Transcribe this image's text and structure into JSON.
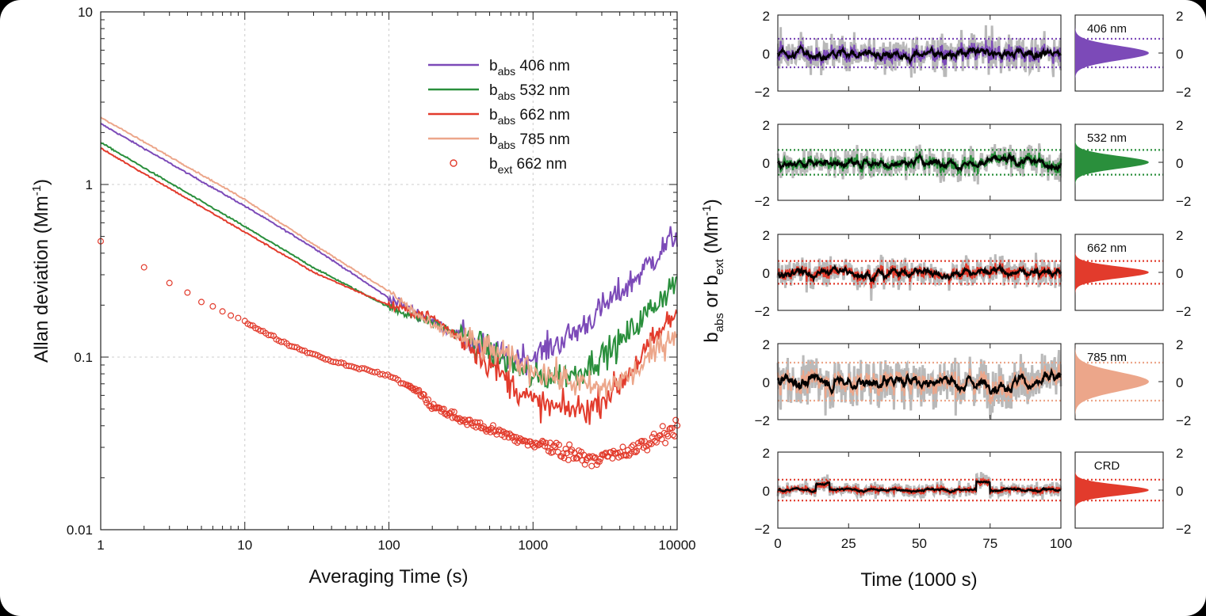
{
  "chart_data": [
    {
      "type": "line",
      "x_scale": "log",
      "y_scale": "log",
      "xlabel": "Averaging Time (s)",
      "ylabel_main": "Allan deviation (Mm",
      "ylabel_sup": "-1",
      "ylabel_close": ")",
      "xlim": [
        1,
        10000
      ],
      "ylim": [
        0.01,
        10
      ],
      "x_ticks": [
        {
          "v": 1,
          "label": "1"
        },
        {
          "v": 10,
          "label": "10"
        },
        {
          "v": 100,
          "label": "100"
        },
        {
          "v": 1000,
          "label": "1000"
        },
        {
          "v": 10000,
          "label": "10000"
        }
      ],
      "y_ticks": [
        {
          "v": 0.01,
          "label": "0.01"
        },
        {
          "v": 0.1,
          "label": "0.1"
        },
        {
          "v": 1,
          "label": "1"
        },
        {
          "v": 10,
          "label": "10"
        }
      ],
      "grid": true,
      "legend_position": "top-right",
      "series": [
        {
          "name": "b",
          "name_sub": "abs",
          "name_rest": "406 nm",
          "color": "#7c4ab8",
          "style": "line",
          "points": [
            [
              1,
              2.25
            ],
            [
              10,
              0.75
            ],
            [
              30,
              0.43
            ],
            [
              100,
              0.22
            ],
            [
              300,
              0.135
            ],
            [
              600,
              0.1
            ],
            [
              1000,
              0.1
            ],
            [
              2000,
              0.14
            ],
            [
              5000,
              0.28
            ],
            [
              10000,
              0.52
            ]
          ]
        },
        {
          "name": "b",
          "name_sub": "abs",
          "name_rest": "532 nm",
          "color": "#2a8f3c",
          "style": "line",
          "points": [
            [
              1,
              1.75
            ],
            [
              10,
              0.57
            ],
            [
              30,
              0.33
            ],
            [
              100,
              0.195
            ],
            [
              200,
              0.16
            ],
            [
              400,
              0.12
            ],
            [
              700,
              0.09
            ],
            [
              1000,
              0.075
            ],
            [
              2000,
              0.08
            ],
            [
              4000,
              0.12
            ],
            [
              10000,
              0.28
            ]
          ]
        },
        {
          "name": "b",
          "name_sub": "abs",
          "name_rest": "662 nm",
          "color": "#e23b2c",
          "style": "line",
          "points": [
            [
              1,
              1.62
            ],
            [
              10,
              0.53
            ],
            [
              30,
              0.31
            ],
            [
              100,
              0.2
            ],
            [
              200,
              0.17
            ],
            [
              400,
              0.11
            ],
            [
              700,
              0.07
            ],
            [
              1000,
              0.055
            ],
            [
              1500,
              0.05
            ],
            [
              2500,
              0.05
            ],
            [
              4000,
              0.07
            ],
            [
              10000,
              0.185
            ]
          ]
        },
        {
          "name": "b",
          "name_sub": "abs",
          "name_rest": "785 nm",
          "color": "#eca68a",
          "style": "line",
          "points": [
            [
              1,
              2.45
            ],
            [
              10,
              0.82
            ],
            [
              30,
              0.45
            ],
            [
              100,
              0.24
            ],
            [
              200,
              0.15
            ],
            [
              400,
              0.12
            ],
            [
              1000,
              0.085
            ],
            [
              2000,
              0.07
            ],
            [
              3000,
              0.065
            ],
            [
              5000,
              0.08
            ],
            [
              10000,
              0.145
            ]
          ]
        },
        {
          "name": "b",
          "name_sub": "ext",
          "name_rest": " 662 nm",
          "color": "#e23b2c",
          "style": "markers",
          "points": [
            [
              1,
              0.47
            ],
            [
              2,
              0.33
            ],
            [
              3,
              0.27
            ],
            [
              5,
              0.21
            ],
            [
              10,
              0.16
            ],
            [
              20,
              0.118
            ],
            [
              40,
              0.095
            ],
            [
              100,
              0.078
            ],
            [
              150,
              0.065
            ],
            [
              200,
              0.052
            ],
            [
              300,
              0.044
            ],
            [
              500,
              0.038
            ],
            [
              800,
              0.033
            ],
            [
              1500,
              0.029
            ],
            [
              2500,
              0.026
            ],
            [
              4000,
              0.027
            ],
            [
              6000,
              0.031
            ],
            [
              10000,
              0.04
            ]
          ]
        }
      ]
    },
    {
      "type": "line",
      "xlabel": "Time (1000 s)",
      "ylabel_b1": "b",
      "ylabel_sub1": "abs",
      "ylabel_or": " or b",
      "ylabel_sub2": "ext",
      "ylabel_open": " (Mm",
      "ylabel_sup": "-1",
      "ylabel_close": ")",
      "xlim": [
        0,
        100
      ],
      "ylim": [
        -2,
        2
      ],
      "x_ticks": [
        {
          "v": 0,
          "label": "0"
        },
        {
          "v": 25,
          "label": "25"
        },
        {
          "v": 50,
          "label": "50"
        },
        {
          "v": 75,
          "label": "75"
        },
        {
          "v": 100,
          "label": "100"
        }
      ],
      "y_ticks": [
        {
          "v": -2,
          "label": "−2"
        },
        {
          "v": 0,
          "label": "0"
        },
        {
          "v": 2,
          "label": "2"
        }
      ],
      "panels": [
        {
          "label": "406 nm",
          "color": "#7c4ab8",
          "band": 0.75,
          "noise": 0.7,
          "smooth": 0.25
        },
        {
          "label": "532 nm",
          "color": "#2a8f3c",
          "band": 0.65,
          "noise": 0.55,
          "smooth": 0.22
        },
        {
          "label": "662 nm",
          "color": "#e23b2c",
          "band": 0.6,
          "noise": 0.55,
          "smooth": 0.22
        },
        {
          "label": "785 nm",
          "color": "#eca68a",
          "band": 1.0,
          "noise": 0.9,
          "smooth": 0.35
        },
        {
          "label": "CRD",
          "color": "#e23b2c",
          "band": 0.55,
          "noise": 0.3,
          "smooth": 0.15
        }
      ]
    }
  ]
}
